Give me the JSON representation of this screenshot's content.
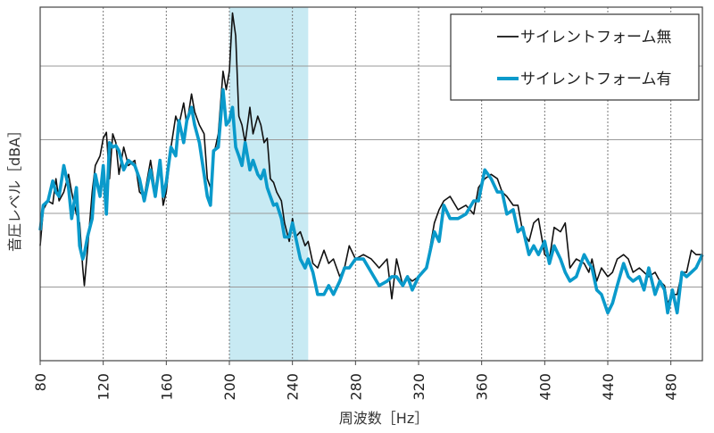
{
  "chart_data": {
    "type": "line",
    "title": "",
    "xlabel": "周波数［Hz］",
    "ylabel": "音圧レベル［dBA］",
    "xlim": [
      80,
      500
    ],
    "ylim": [
      0,
      48
    ],
    "xticks": [
      80,
      120,
      160,
      200,
      240,
      280,
      320,
      360,
      400,
      440,
      480
    ],
    "xtick_labels": [
      "80",
      "120",
      "160",
      "200",
      "240",
      "280",
      "320",
      "360",
      "400",
      "440",
      "480"
    ],
    "ygrid": [
      10,
      20,
      30,
      40
    ],
    "grid": true,
    "legend_position": "top-right",
    "highlight_band": {
      "from": 200,
      "to": 250,
      "color": "#c8eaf3"
    },
    "x": [
      80,
      82,
      85,
      88,
      90,
      92,
      95,
      98,
      100,
      103,
      105,
      107,
      108,
      110,
      113,
      115,
      118,
      120,
      122,
      124,
      126,
      128,
      130,
      133,
      136,
      140,
      143,
      146,
      150,
      153,
      156,
      158,
      160,
      163,
      166,
      168,
      171,
      173,
      176,
      178,
      181,
      184,
      186,
      188,
      190,
      193,
      196,
      198,
      200,
      202,
      204,
      206,
      208,
      210,
      213,
      215,
      218,
      220,
      222,
      224,
      226,
      228,
      230,
      233,
      235,
      238,
      240,
      242,
      245,
      248,
      250,
      253,
      256,
      260,
      263,
      266,
      270,
      273,
      276,
      280,
      285,
      290,
      295,
      300,
      303,
      306,
      310,
      313,
      316,
      320,
      325,
      330,
      333,
      336,
      340,
      345,
      350,
      355,
      358,
      362,
      366,
      370,
      373,
      376,
      380,
      383,
      386,
      390,
      393,
      396,
      400,
      403,
      406,
      410,
      413,
      416,
      420,
      425,
      428,
      430,
      433,
      436,
      440,
      443,
      446,
      450,
      453,
      456,
      460,
      463,
      466,
      470,
      473,
      476,
      478,
      481,
      484,
      487,
      490,
      493,
      496,
      500
    ],
    "series": [
      {
        "name": "サイレントフォーム無",
        "color": "#111111",
        "values": [
          15.6,
          20.5,
          21.7,
          21.3,
          24.7,
          21.7,
          22.9,
          25.3,
          22.9,
          19.9,
          18.7,
          12.6,
          10.2,
          15.0,
          22.9,
          26.5,
          27.8,
          30.2,
          31.0,
          24.7,
          30.8,
          29.6,
          25.3,
          29.0,
          26.5,
          27.2,
          22.9,
          22.3,
          27.2,
          22.9,
          26.5,
          21.1,
          22.9,
          29.0,
          33.2,
          32.0,
          35.0,
          32.0,
          36.2,
          33.8,
          32.0,
          30.8,
          24.7,
          23.5,
          27.8,
          30.8,
          39.3,
          36.8,
          39.3,
          47.2,
          44.1,
          33.2,
          32.0,
          29.6,
          34.4,
          30.8,
          33.2,
          32.0,
          29.6,
          30.2,
          24.7,
          24.2,
          22.9,
          21.7,
          18.7,
          16.2,
          19.3,
          16.8,
          17.5,
          15.6,
          16.2,
          13.2,
          12.6,
          15.0,
          13.2,
          13.8,
          11.4,
          12.6,
          15.6,
          13.8,
          14.4,
          13.8,
          12.6,
          13.8,
          8.4,
          13.8,
          10.2,
          11.4,
          10.8,
          11.4,
          12.6,
          18.7,
          20.5,
          21.7,
          22.3,
          20.5,
          21.1,
          19.9,
          23.5,
          24.7,
          25.3,
          24.7,
          22.9,
          22.3,
          21.1,
          21.1,
          17.5,
          16.2,
          18.7,
          19.3,
          14.4,
          13.8,
          18.1,
          17.5,
          18.7,
          12.6,
          13.8,
          13.2,
          12.0,
          13.8,
          10.8,
          12.6,
          11.4,
          12.0,
          13.8,
          14.4,
          13.8,
          12.0,
          12.6,
          12.0,
          11.4,
          12.0,
          10.8,
          10.2,
          7.8,
          9.0,
          9.0,
          12.0,
          12.0,
          15.0,
          14.4,
          14.4
        ]
      },
      {
        "name": "サイレントフォーム有",
        "color": "#0a9acb",
        "values": [
          17.7,
          21.1,
          21.7,
          24.4,
          22.9,
          22.3,
          26.5,
          23.5,
          19.3,
          23.5,
          15.6,
          13.8,
          14.5,
          16.8,
          19.3,
          25.3,
          22.3,
          26.5,
          19.9,
          29.6,
          29.0,
          29.2,
          28.5,
          25.9,
          27.2,
          26.5,
          24.7,
          21.7,
          25.9,
          22.3,
          27.2,
          22.3,
          24.2,
          29.0,
          27.8,
          32.6,
          29.6,
          32.6,
          34.4,
          32.0,
          29.6,
          25.3,
          22.3,
          21.1,
          28.5,
          29.0,
          36.8,
          32.0,
          32.6,
          34.4,
          29.0,
          27.8,
          26.5,
          29.6,
          25.9,
          27.2,
          25.3,
          24.7,
          25.9,
          23.5,
          22.3,
          21.1,
          21.3,
          19.3,
          16.8,
          16.8,
          18.7,
          16.8,
          13.8,
          12.6,
          13.8,
          12.0,
          9.0,
          9.0,
          10.2,
          9.0,
          10.8,
          12.6,
          12.6,
          13.8,
          13.8,
          12.0,
          10.2,
          10.8,
          11.4,
          11.4,
          10.2,
          11.4,
          9.6,
          11.4,
          12.6,
          17.5,
          16.2,
          21.1,
          19.3,
          19.3,
          19.9,
          21.7,
          21.7,
          25.9,
          24.7,
          22.9,
          22.9,
          19.9,
          20.5,
          17.5,
          18.1,
          14.4,
          15.6,
          14.4,
          16.2,
          13.2,
          15.6,
          13.8,
          12.0,
          10.8,
          11.4,
          14.4,
          13.2,
          12.6,
          9.6,
          9.0,
          6.5,
          7.8,
          10.2,
          13.2,
          11.4,
          10.8,
          11.4,
          9.6,
          12.6,
          9.0,
          10.8,
          9.6,
          6.5,
          9.6,
          6.5,
          12.0,
          11.4,
          12.0,
          12.6,
          14.4
        ]
      }
    ]
  }
}
